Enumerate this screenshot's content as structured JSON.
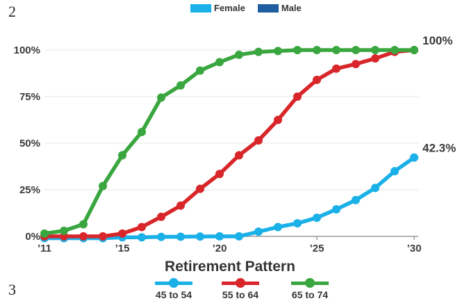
{
  "page_marks": {
    "top": "2",
    "bottom": "3"
  },
  "top_legend": [
    {
      "label": "Female",
      "color": "#1ab0e8"
    },
    {
      "label": "Male",
      "color": "#1f5fa0"
    }
  ],
  "chart_data": {
    "type": "line",
    "title": "Retirement Pattern",
    "xlabel": "",
    "ylabel": "",
    "x": [
      2011,
      2012,
      2013,
      2014,
      2015,
      2016,
      2017,
      2018,
      2019,
      2020,
      2021,
      2022,
      2023,
      2024,
      2025,
      2026,
      2027,
      2028,
      2029,
      2030
    ],
    "x_ticks": [
      {
        "value": 2011,
        "label": "’11"
      },
      {
        "value": 2015,
        "label": "’15"
      },
      {
        "value": 2020,
        "label": "’20"
      },
      {
        "value": 2025,
        "label": "’25"
      },
      {
        "value": 2030,
        "label": "’30"
      }
    ],
    "y_ticks": [
      {
        "value": 0,
        "label": "0%"
      },
      {
        "value": 25,
        "label": "25%"
      },
      {
        "value": 50,
        "label": "50%"
      },
      {
        "value": 75,
        "label": "75%"
      },
      {
        "value": 100,
        "label": "100%"
      }
    ],
    "xlim": [
      2011,
      2030
    ],
    "ylim": [
      0,
      100
    ],
    "grid": true,
    "legend_position": "bottom",
    "series": [
      {
        "name": "45 to 54",
        "color": "#1ab0e8",
        "values": [
          -1,
          -1,
          -1,
          -1,
          -0.5,
          -0.5,
          -0.3,
          -0.2,
          -0.1,
          0,
          0,
          2.5,
          5,
          7,
          10,
          14.5,
          19.5,
          26,
          35,
          42.3
        ]
      },
      {
        "name": "55 to 64",
        "color": "#d8262a",
        "values": [
          0,
          0,
          0,
          0,
          1.5,
          5,
          10.5,
          16.5,
          25.5,
          33.5,
          43.5,
          51.5,
          62.5,
          75,
          84,
          90,
          92.5,
          95.5,
          99,
          100
        ]
      },
      {
        "name": "65 to 74",
        "color": "#3aa63f",
        "values": [
          1.5,
          3,
          6.5,
          27,
          43.5,
          56,
          74.5,
          81,
          89,
          93.5,
          97.5,
          99,
          99.5,
          100,
          100,
          100,
          100,
          100,
          100,
          100
        ]
      }
    ],
    "end_labels": [
      {
        "series": "55 to 64",
        "text": "100%"
      },
      {
        "series": "45 to 54",
        "text": "42.3%"
      }
    ]
  }
}
